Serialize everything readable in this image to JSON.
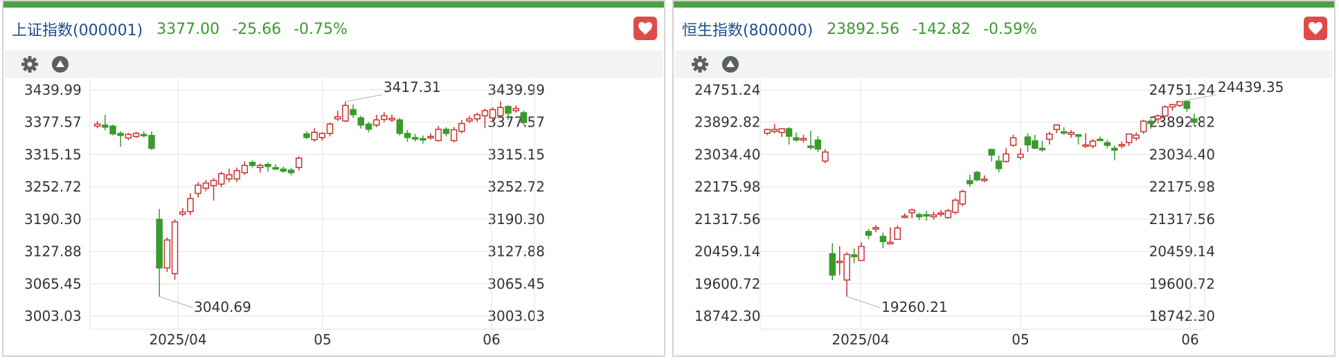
{
  "panels": [
    {
      "name": "上证指数(000001)",
      "price": "3377.00",
      "change": "-25.66",
      "change_pct": "-0.75%",
      "colors": {
        "up": "#c8302c",
        "down": "#3a9a2c",
        "header_bar": "#4aa33e",
        "heart": "#e04a4a"
      },
      "toolbar_icons": [
        "gear-icon",
        "triangle-up-icon"
      ],
      "chart_data": {
        "type": "candlestick",
        "y_ticks": [
          "3439.99",
          "3377.57",
          "3315.15",
          "3252.72",
          "3190.30",
          "3127.88",
          "3065.45",
          "3003.03"
        ],
        "x_ticks": [
          "2025/04",
          "05",
          "06"
        ],
        "ylim": [
          3003.03,
          3439.99
        ],
        "annotations": [
          {
            "label": "3417.31",
            "value": 3417.31
          },
          {
            "label": "3040.69",
            "value": 3040.69
          }
        ],
        "grid": true,
        "candles": [
          [
            3370,
            3374,
            3380,
            3366
          ],
          [
            3372,
            3368,
            3392,
            3362
          ],
          [
            3370,
            3355,
            3373,
            3352
          ],
          [
            3356,
            3352,
            3360,
            3330
          ],
          [
            3347,
            3354,
            3357,
            3343
          ],
          [
            3350,
            3356,
            3359,
            3347
          ],
          [
            3354,
            3352,
            3360,
            3348
          ],
          [
            3352,
            3327,
            3360,
            3324
          ],
          [
            3190,
            3096,
            3210,
            3040
          ],
          [
            3096,
            3150,
            3155,
            3088
          ],
          [
            3085,
            3185,
            3190,
            3073
          ],
          [
            3200,
            3204,
            3212,
            3196
          ],
          [
            3205,
            3230,
            3240,
            3198
          ],
          [
            3240,
            3256,
            3262,
            3232
          ],
          [
            3250,
            3260,
            3266,
            3244
          ],
          [
            3255,
            3265,
            3270,
            3226
          ],
          [
            3258,
            3278,
            3282,
            3252
          ],
          [
            3268,
            3276,
            3288,
            3262
          ],
          [
            3268,
            3284,
            3290,
            3262
          ],
          [
            3280,
            3294,
            3302,
            3276
          ],
          [
            3300,
            3294,
            3304,
            3290
          ],
          [
            3290,
            3294,
            3298,
            3280
          ],
          [
            3296,
            3292,
            3300,
            3282
          ],
          [
            3290,
            3287,
            3296,
            3285
          ],
          [
            3287,
            3283,
            3292,
            3280
          ],
          [
            3285,
            3280,
            3289,
            3275
          ],
          [
            3290,
            3308,
            3312,
            3284
          ],
          [
            3355,
            3348,
            3360,
            3345
          ],
          [
            3344,
            3358,
            3366,
            3340
          ],
          [
            3348,
            3356,
            3358,
            3342
          ],
          [
            3356,
            3374,
            3377,
            3350
          ],
          [
            3384,
            3388,
            3400,
            3380
          ],
          [
            3380,
            3410,
            3417,
            3378
          ],
          [
            3402,
            3392,
            3412,
            3386
          ],
          [
            3386,
            3372,
            3390,
            3365
          ],
          [
            3374,
            3364,
            3378,
            3358
          ],
          [
            3372,
            3382,
            3392,
            3368
          ],
          [
            3383,
            3390,
            3397,
            3378
          ],
          [
            3382,
            3385,
            3392,
            3378
          ],
          [
            3382,
            3356,
            3386,
            3352
          ],
          [
            3356,
            3348,
            3363,
            3340
          ],
          [
            3348,
            3345,
            3355,
            3340
          ],
          [
            3346,
            3344,
            3352,
            3336
          ],
          [
            3348,
            3350,
            3356,
            3344
          ],
          [
            3342,
            3364,
            3370,
            3340
          ],
          [
            3364,
            3356,
            3368,
            3350
          ],
          [
            3342,
            3363,
            3368,
            3338
          ],
          [
            3360,
            3375,
            3382,
            3356
          ],
          [
            3380,
            3384,
            3390,
            3376
          ],
          [
            3384,
            3392,
            3396,
            3378
          ],
          [
            3390,
            3400,
            3404,
            3366
          ],
          [
            3386,
            3402,
            3406,
            3380
          ],
          [
            3390,
            3406,
            3418,
            3388
          ],
          [
            3408,
            3395,
            3410,
            3382
          ],
          [
            3400,
            3404,
            3410,
            3396
          ],
          [
            3396,
            3377,
            3400,
            3372
          ]
        ]
      }
    },
    {
      "name": "恒生指数(800000)",
      "price": "23892.56",
      "change": "-142.82",
      "change_pct": "-0.59%",
      "colors": {
        "up": "#c8302c",
        "down": "#3a9a2c",
        "header_bar": "#4aa33e",
        "heart": "#e04a4a"
      },
      "toolbar_icons": [
        "gear-icon",
        "triangle-up-icon"
      ],
      "chart_data": {
        "type": "candlestick",
        "y_ticks": [
          "24751.24",
          "23892.82",
          "23034.40",
          "22175.98",
          "21317.56",
          "20459.14",
          "19600.72",
          "18742.30"
        ],
        "x_ticks": [
          "2025/04",
          "05",
          "06"
        ],
        "ylim": [
          18742.3,
          24751.24
        ],
        "annotations": [
          {
            "label": "24439.35",
            "value": 24439.35
          },
          {
            "label": "19260.21",
            "value": 19260.21
          }
        ],
        "grid": true,
        "candles": [
          [
            23600,
            23700,
            23720,
            23550
          ],
          [
            23650,
            23700,
            23850,
            23600
          ],
          [
            23620,
            23720,
            23730,
            23500
          ],
          [
            23720,
            23520,
            23760,
            23300
          ],
          [
            23480,
            23420,
            23620,
            23380
          ],
          [
            23420,
            23460,
            23560,
            23360
          ],
          [
            23260,
            23220,
            23660,
            23160
          ],
          [
            23420,
            23180,
            23520,
            23100
          ],
          [
            22860,
            23100,
            23180,
            22800
          ],
          [
            20400,
            19830,
            20680,
            19700
          ],
          [
            20200,
            20200,
            20600,
            19830
          ],
          [
            19700,
            20380,
            20440,
            19260
          ],
          [
            20370,
            20320,
            20540,
            20150
          ],
          [
            20220,
            20590,
            20700,
            20220
          ],
          [
            20990,
            20890,
            21060,
            20780
          ],
          [
            21070,
            21090,
            21160,
            20970
          ],
          [
            20860,
            20720,
            20960,
            20540
          ],
          [
            20660,
            20700,
            21100,
            20660
          ],
          [
            20780,
            21080,
            21150,
            20780
          ],
          [
            21400,
            21400,
            21470,
            21340
          ],
          [
            21490,
            21560,
            21600,
            21340
          ],
          [
            21440,
            21380,
            21480,
            21290
          ],
          [
            21440,
            21400,
            21540,
            21280
          ],
          [
            21380,
            21430,
            21520,
            21300
          ],
          [
            21450,
            21480,
            21560,
            21380
          ],
          [
            21360,
            21540,
            21590,
            21330
          ],
          [
            21500,
            21820,
            21870,
            21440
          ],
          [
            21720,
            22050,
            22100,
            21660
          ],
          [
            22340,
            22260,
            22500,
            22180
          ],
          [
            22560,
            22360,
            22600,
            22320
          ],
          [
            22360,
            22380,
            22480,
            22300
          ],
          [
            23170,
            23020,
            23180,
            22850
          ],
          [
            22860,
            22660,
            23000,
            22560
          ],
          [
            22850,
            23050,
            23200,
            22820
          ],
          [
            23280,
            23480,
            23560,
            23240
          ],
          [
            22960,
            23040,
            23200,
            22900
          ],
          [
            23500,
            23290,
            23600,
            23100
          ],
          [
            23400,
            23200,
            23560,
            23180
          ],
          [
            23200,
            23160,
            23400,
            23110
          ],
          [
            23440,
            23580,
            23640,
            23300
          ],
          [
            23700,
            23820,
            23840,
            23600
          ],
          [
            23640,
            23620,
            23760,
            23560
          ],
          [
            23570,
            23620,
            23680,
            23480
          ],
          [
            23560,
            23520,
            23580,
            23300
          ],
          [
            23290,
            23290,
            23600,
            23210
          ],
          [
            23260,
            23390,
            23450,
            23200
          ],
          [
            23440,
            23420,
            23510,
            23400
          ],
          [
            23350,
            23280,
            23420,
            23200
          ],
          [
            23200,
            23150,
            23280,
            22880
          ],
          [
            23280,
            23300,
            23380,
            23200
          ],
          [
            23350,
            23580,
            23580,
            23260
          ],
          [
            23470,
            23550,
            23620,
            23400
          ],
          [
            23640,
            23920,
            23960,
            23580
          ],
          [
            23920,
            23860,
            23980,
            23720
          ],
          [
            23980,
            24060,
            24100,
            23860
          ],
          [
            24060,
            24300,
            24340,
            24020
          ],
          [
            24300,
            24360,
            24380,
            24200
          ],
          [
            24340,
            24439,
            24460,
            24300
          ],
          [
            24440,
            24260,
            24480,
            24160
          ],
          [
            23980,
            23892,
            24120,
            23800
          ]
        ]
      }
    }
  ]
}
